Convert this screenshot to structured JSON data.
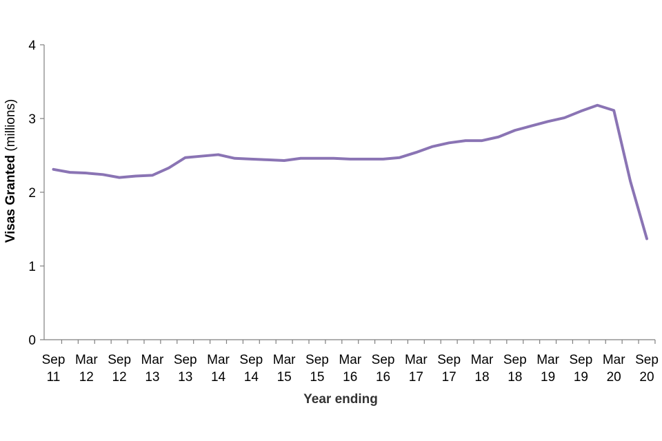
{
  "chart_data": {
    "type": "line",
    "title": "",
    "xlabel": "Year ending",
    "ylabel_bold": "Visas Granted",
    "ylabel_rest": " (millions)",
    "ylim": [
      0,
      4
    ],
    "yticks": [
      "0",
      "1",
      "2",
      "3",
      "4"
    ],
    "grid": false,
    "legend": "none",
    "x_tick_labels": [
      [
        "Sep",
        "11"
      ],
      [
        "Mar",
        "12"
      ],
      [
        "Sep",
        "12"
      ],
      [
        "Mar",
        "13"
      ],
      [
        "Sep",
        "13"
      ],
      [
        "Mar",
        "14"
      ],
      [
        "Sep",
        "14"
      ],
      [
        "Mar",
        "15"
      ],
      [
        "Sep",
        "15"
      ],
      [
        "Mar",
        "16"
      ],
      [
        "Sep",
        "16"
      ],
      [
        "Mar",
        "17"
      ],
      [
        "Sep",
        "17"
      ],
      [
        "Mar",
        "18"
      ],
      [
        "Sep",
        "18"
      ],
      [
        "Mar",
        "19"
      ],
      [
        "Sep",
        "19"
      ],
      [
        "Mar",
        "20"
      ],
      [
        "Sep",
        "20"
      ]
    ],
    "x": [
      "Sep 11",
      "Dec 11",
      "Mar 12",
      "Jun 12",
      "Sep 12",
      "Dec 12",
      "Mar 13",
      "Jun 13",
      "Sep 13",
      "Dec 13",
      "Mar 14",
      "Jun 14",
      "Sep 14",
      "Dec 14",
      "Mar 15",
      "Jun 15",
      "Sep 15",
      "Dec 15",
      "Mar 16",
      "Jun 16",
      "Sep 16",
      "Dec 16",
      "Mar 17",
      "Jun 17",
      "Sep 17",
      "Dec 17",
      "Mar 18",
      "Jun 18",
      "Sep 18",
      "Dec 18",
      "Mar 19",
      "Jun 19",
      "Sep 19",
      "Dec 19",
      "Mar 20",
      "Jun 20",
      "Sep 20"
    ],
    "series": [
      {
        "values": [
          2.31,
          2.27,
          2.26,
          2.24,
          2.2,
          2.22,
          2.23,
          2.33,
          2.47,
          2.49,
          2.51,
          2.46,
          2.45,
          2.44,
          2.43,
          2.46,
          2.46,
          2.46,
          2.45,
          2.45,
          2.45,
          2.47,
          2.54,
          2.62,
          2.67,
          2.7,
          2.7,
          2.75,
          2.84,
          2.9,
          2.96,
          3.01,
          3.1,
          3.18,
          3.11,
          2.15,
          1.37
        ],
        "color": "#8a74b4"
      }
    ]
  }
}
